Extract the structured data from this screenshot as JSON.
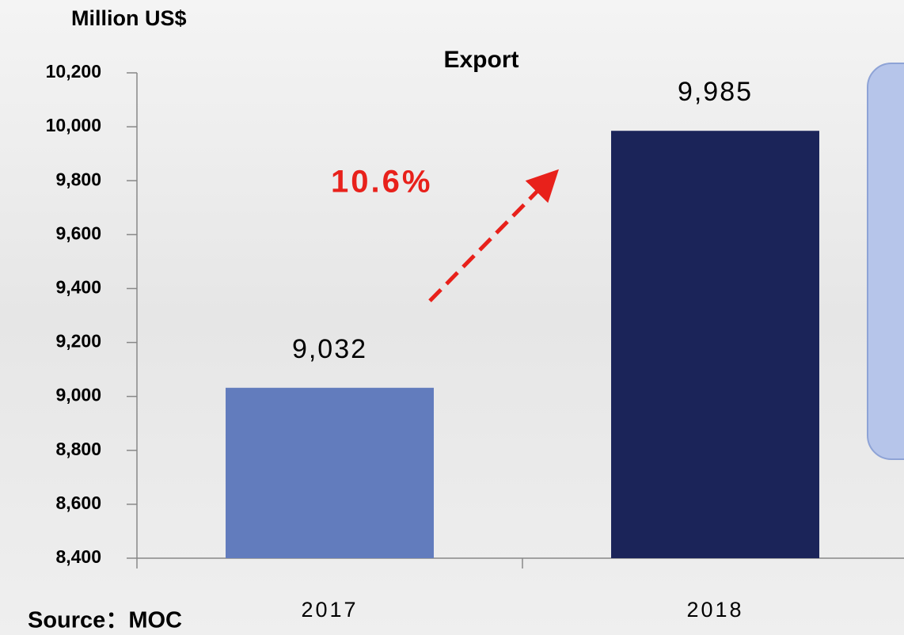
{
  "chart_data": {
    "type": "bar",
    "title": "Export",
    "y_axis_label": "Million US$",
    "annotation": "10.6%",
    "source": "Source：MOC",
    "categories": [
      "2017",
      "2018"
    ],
    "values": [
      9032,
      9985
    ],
    "value_labels": [
      "9,032",
      "9,985"
    ],
    "colors": [
      "#627cbd",
      "#1b2459"
    ],
    "ylim": [
      8400,
      10200
    ],
    "yticks": [
      {
        "value": 8400,
        "label": "8,400"
      },
      {
        "value": 8600,
        "label": "8,600"
      },
      {
        "value": 8800,
        "label": "8,800"
      },
      {
        "value": 9000,
        "label": "9,000"
      },
      {
        "value": 9200,
        "label": "9,200"
      },
      {
        "value": 9400,
        "label": "9,400"
      },
      {
        "value": 9600,
        "label": "9,600"
      },
      {
        "value": 9800,
        "label": "9,800"
      },
      {
        "value": 10000,
        "label": "10,000"
      },
      {
        "value": 10200,
        "label": "10,200"
      }
    ],
    "grid": false
  }
}
